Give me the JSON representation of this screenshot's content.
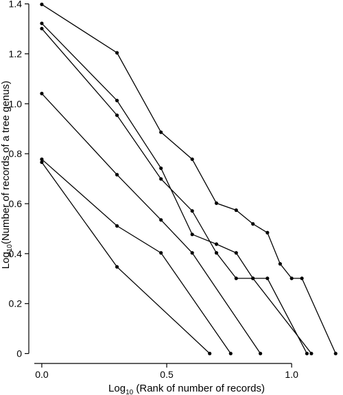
{
  "chart_data": {
    "type": "line",
    "title": "",
    "xlabel": {
      "prefix": "Log",
      "sub": "10",
      "rest": " (Rank of number of records)"
    },
    "ylabel": {
      "prefix": "Log",
      "sub": "10",
      "rest": "(Number of records of a tree genus)"
    },
    "xlim": [
      -0.03,
      1.2
    ],
    "ylim": [
      -0.015,
      1.41
    ],
    "x_ticks": [
      0,
      0.5,
      1
    ],
    "x_tick_labels": [
      "0.0",
      "0.5",
      "1.0"
    ],
    "y_ticks": [
      0,
      0.2,
      0.4,
      0.6,
      0.8,
      1.0,
      1.2,
      1.4
    ],
    "y_tick_labels": [
      "0",
      "0.2",
      "0.4",
      "0.6",
      "0.8",
      "1.0",
      "1.2",
      "1.4"
    ],
    "grid": false,
    "series": [
      {
        "x": [
          0,
          0.301,
          0.477,
          0.602,
          0.699,
          0.778,
          0.845,
          0.903,
          0.954,
          1.0,
          1.041,
          1.176
        ],
        "y": [
          1.398,
          1.204,
          0.886,
          0.778,
          0.602,
          0.574,
          0.519,
          0.484,
          0.359,
          0.301,
          0.301,
          0.0
        ]
      },
      {
        "x": [
          0,
          0.301,
          0.477,
          0.602,
          0.699,
          0.778,
          0.845,
          1.079
        ],
        "y": [
          1.322,
          1.013,
          0.742,
          0.477,
          0.438,
          0.403,
          0.301,
          0.0
        ]
      },
      {
        "x": [
          0,
          0.301,
          0.477,
          0.602,
          0.699,
          0.778,
          0.845,
          0.903,
          1.061
        ],
        "y": [
          1.301,
          0.954,
          0.699,
          0.571,
          0.403,
          0.301,
          0.301,
          0.301,
          0.0
        ]
      },
      {
        "x": [
          0,
          0.301,
          0.477,
          0.602,
          0.875
        ],
        "y": [
          1.041,
          0.716,
          0.535,
          0.403,
          0.0
        ]
      },
      {
        "x": [
          0,
          0.301,
          0.477,
          0.756
        ],
        "y": [
          0.778,
          0.511,
          0.403,
          0.0
        ]
      },
      {
        "x": [
          0,
          0.301,
          0.672
        ],
        "y": [
          0.766,
          0.347,
          0.0
        ]
      }
    ]
  }
}
